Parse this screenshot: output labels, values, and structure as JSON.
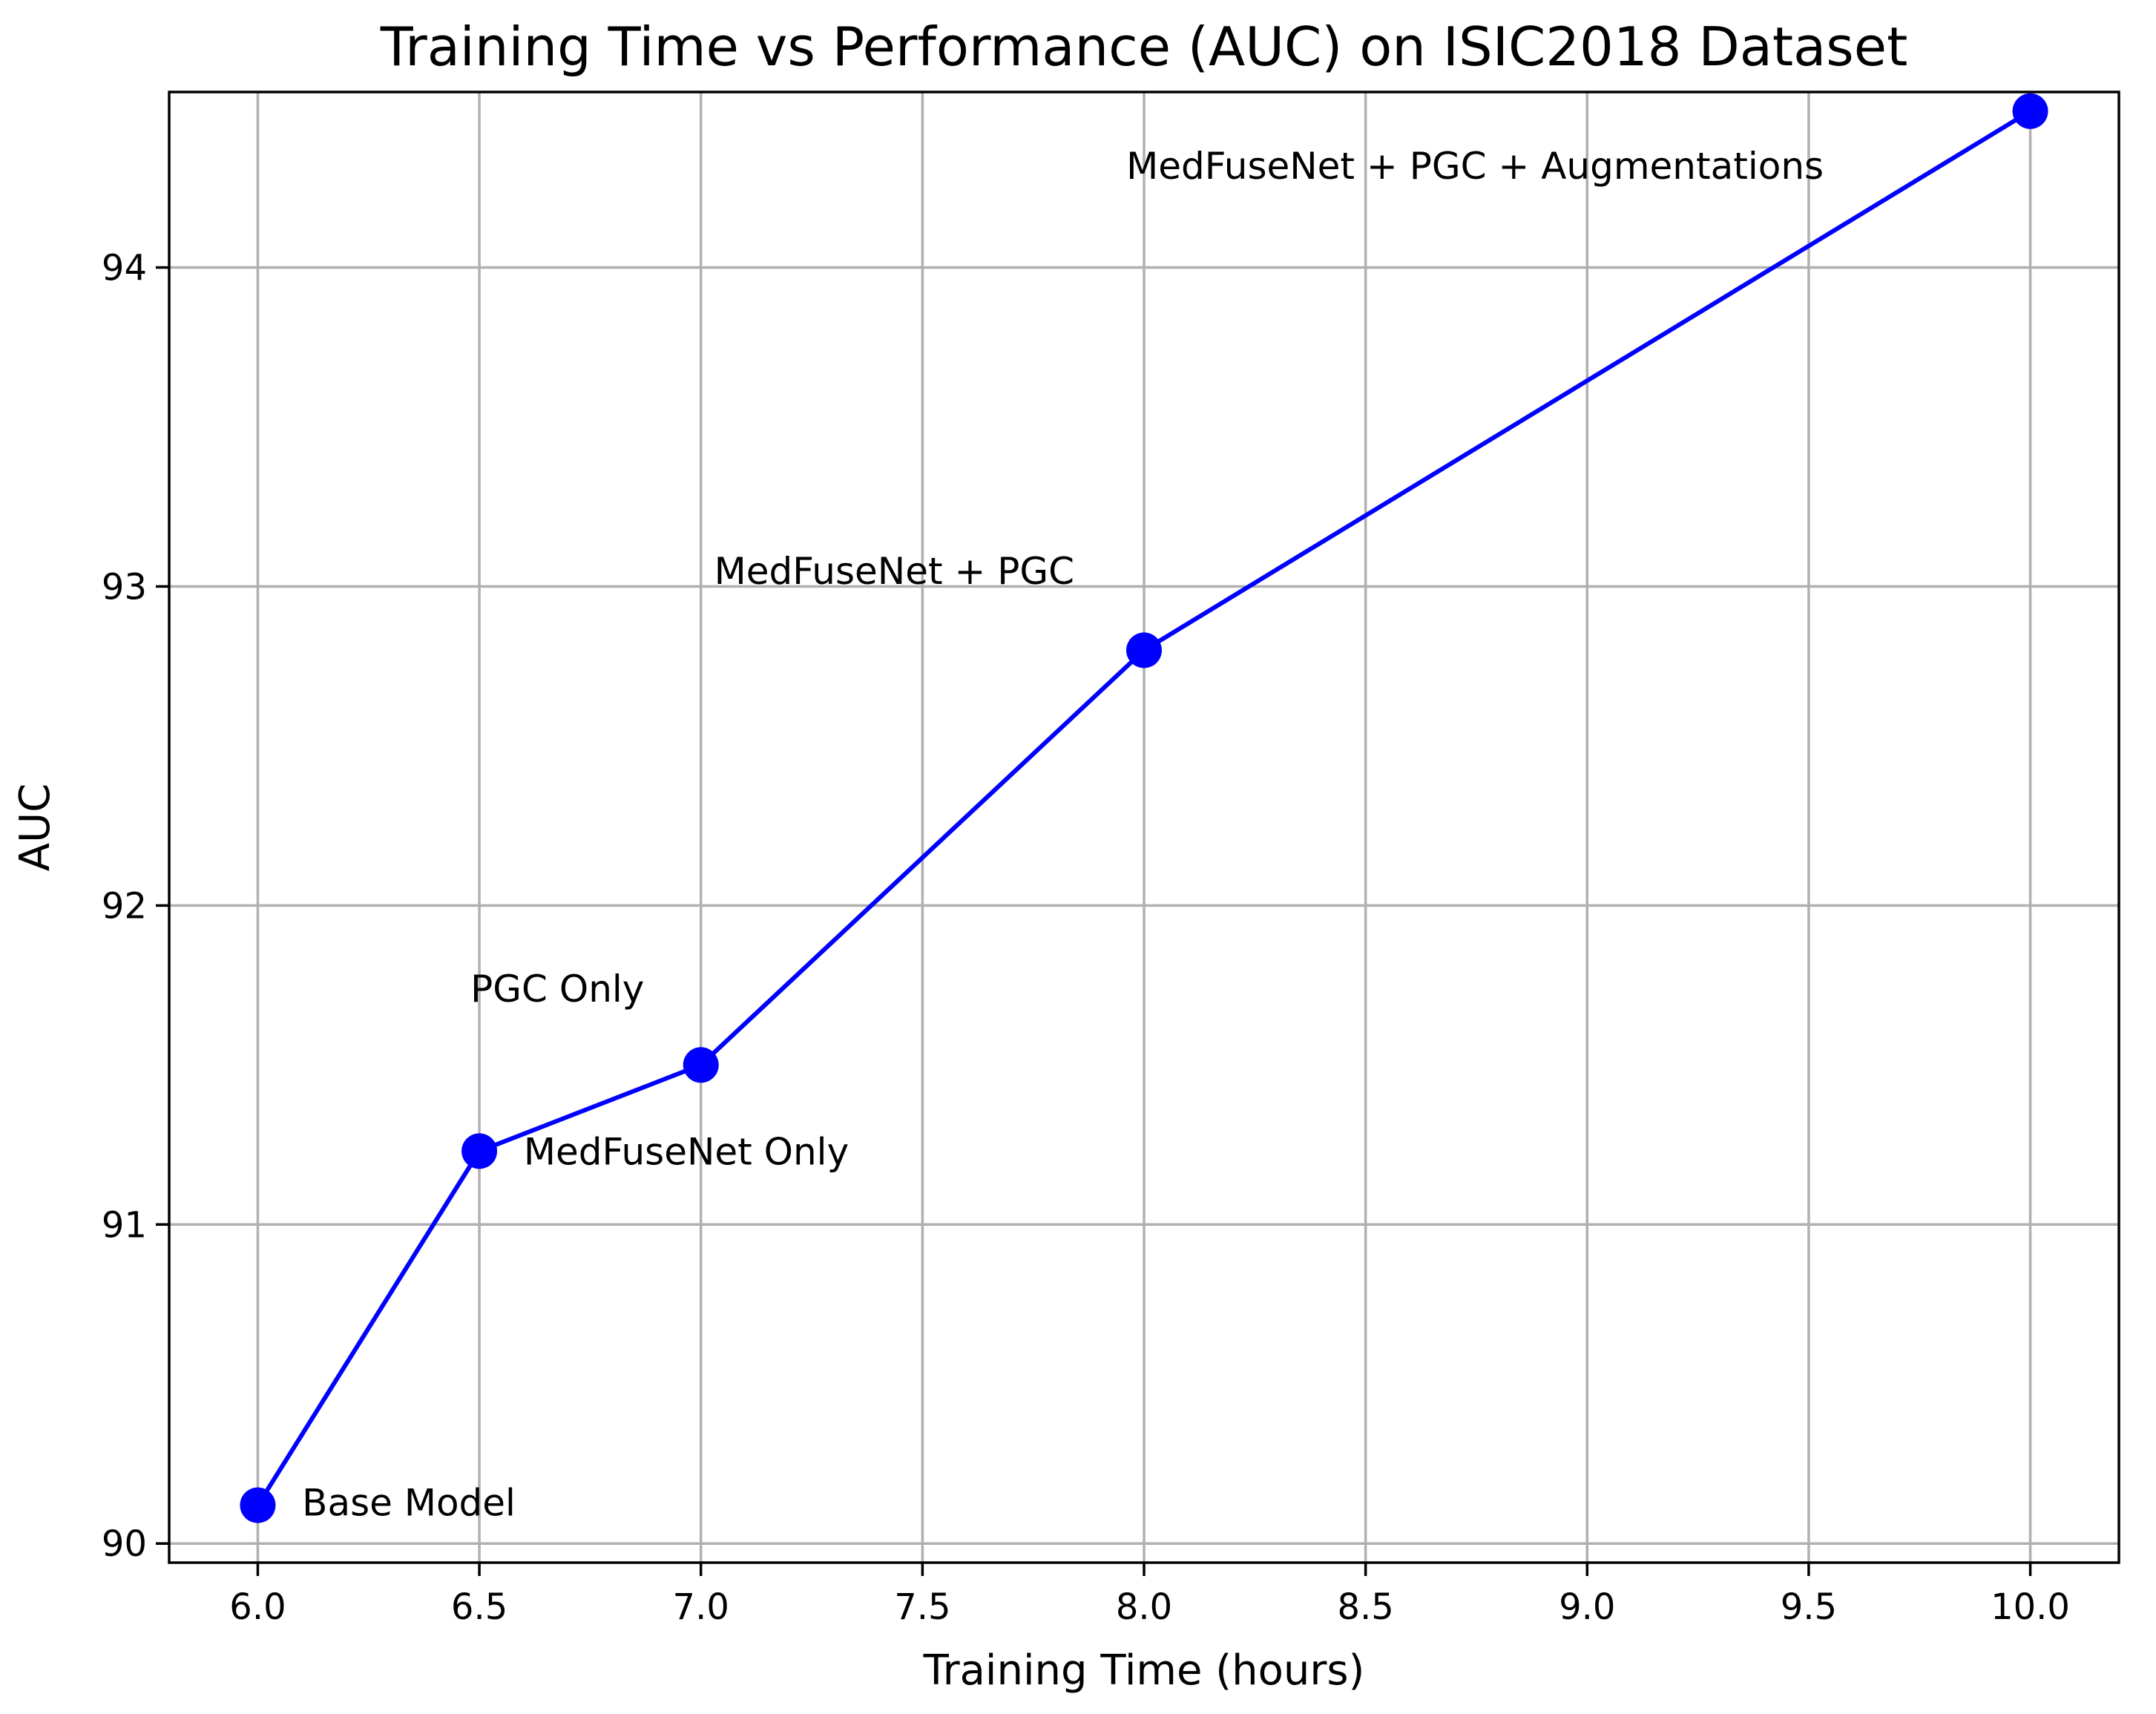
{
  "chart_data": {
    "type": "line",
    "title": "Training Time vs Performance (AUC) on ISIC2018 Dataset",
    "xlabel": "Training Time (hours)",
    "ylabel": "AUC",
    "xlim": [
      5.8,
      10.2
    ],
    "ylim": [
      89.94,
      94.55
    ],
    "xticks": [
      6.0,
      6.5,
      7.0,
      7.5,
      8.0,
      8.5,
      9.0,
      9.5,
      10.0
    ],
    "xtick_labels": [
      "6.0",
      "6.5",
      "7.0",
      "7.5",
      "8.0",
      "8.5",
      "9.0",
      "9.5",
      "10.0"
    ],
    "yticks": [
      90,
      91,
      92,
      93,
      94
    ],
    "ytick_labels": [
      "90",
      "91",
      "92",
      "93",
      "94"
    ],
    "grid": true,
    "series": [
      {
        "color": "#0000ff",
        "marker": "circle",
        "x": [
          6.0,
          6.5,
          7.0,
          8.0,
          10.0
        ],
        "y": [
          90.12,
          91.23,
          91.5,
          92.8,
          94.49
        ]
      }
    ],
    "annotations": [
      {
        "text": "Base Model",
        "x": 6.1,
        "y": 90.13
      },
      {
        "text": "MedFuseNet Only",
        "x": 6.6,
        "y": 91.23
      },
      {
        "text": "PGC Only",
        "x": 6.48,
        "y": 91.74
      },
      {
        "text": "MedFuseNet + PGC",
        "x": 7.03,
        "y": 93.05
      },
      {
        "text": "MedFuseNet + PGC + Augmentations",
        "x": 7.96,
        "y": 94.32
      }
    ]
  }
}
